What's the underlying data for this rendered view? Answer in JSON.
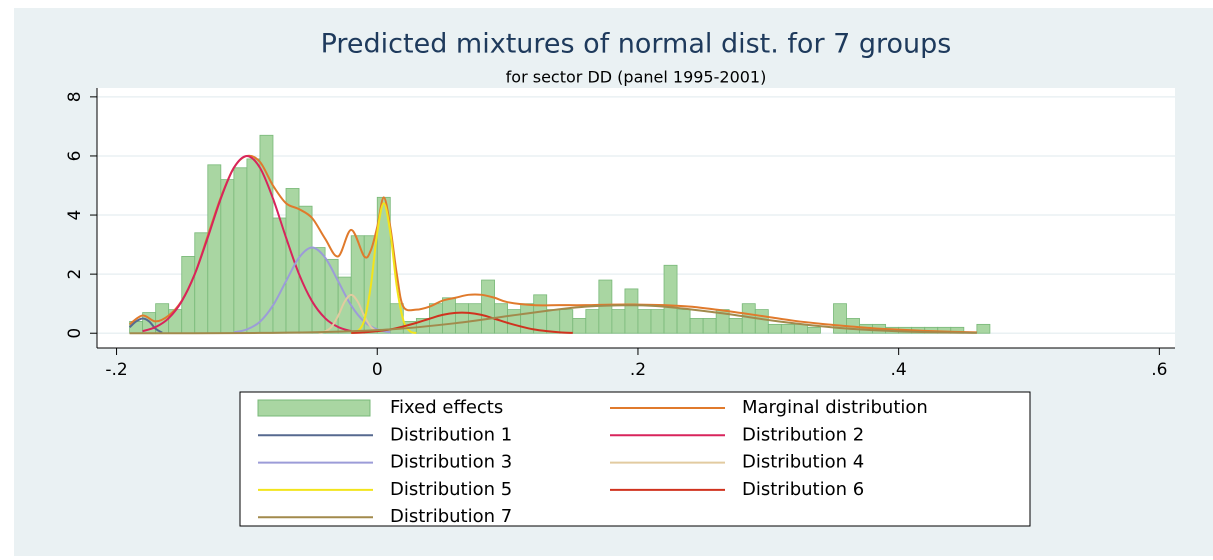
{
  "chart_data": {
    "type": "histogram",
    "title": "Predicted mixtures of normal dist. for 7 groups",
    "subtitle": "for sector DD (panel 1995-2001)",
    "xlim": [
      -0.215,
      0.612
    ],
    "xticks": [
      {
        "value": -0.2,
        "label": "-.2"
      },
      0,
      {
        "value": 0.2,
        "label": ".2"
      },
      {
        "value": 0.4,
        "label": ".4"
      },
      {
        "value": 0.6,
        "label": ".6"
      }
    ],
    "ylim": [
      -0.5,
      8.3
    ],
    "yticks": [
      0,
      2,
      4,
      6,
      8
    ],
    "grid": true,
    "series": [
      {
        "name": "Fixed effects",
        "type": "histogram",
        "color": "#a9d6a2",
        "bins": [
          -0.19,
          -0.18,
          -0.17,
          -0.16,
          -0.15,
          -0.14,
          -0.13,
          -0.12,
          -0.11,
          -0.1,
          -0.09,
          -0.08,
          -0.07,
          -0.06,
          -0.05,
          -0.04,
          -0.03,
          -0.02,
          -0.01,
          0,
          0.01,
          0.02,
          0.03,
          0.04,
          0.05,
          0.06,
          0.07,
          0.08,
          0.09,
          0.1,
          0.11,
          0.12,
          0.13,
          0.14,
          0.15,
          0.16,
          0.17,
          0.18,
          0.19,
          0.2,
          0.21,
          0.22,
          0.23,
          0.24,
          0.25,
          0.26,
          0.27,
          0.28,
          0.29,
          0.3,
          0.31,
          0.32,
          0.33,
          0.34,
          0.35,
          0.36,
          0.37,
          0.38,
          0.39,
          0.4,
          0.41,
          0.42,
          0.43,
          0.44,
          0.45,
          0.46,
          0.47
        ],
        "values": [
          0.4,
          0.7,
          1.0,
          0.8,
          2.6,
          3.4,
          5.7,
          5.2,
          5.6,
          5.9,
          6.7,
          3.9,
          4.9,
          4.3,
          2.9,
          2.5,
          1.9,
          3.3,
          3.3,
          4.6,
          1.0,
          0.4,
          0.5,
          1.0,
          1.2,
          1.0,
          1.0,
          1.8,
          1.0,
          0.8,
          1.0,
          1.3,
          0.8,
          0.8,
          0.5,
          0.8,
          1.8,
          0.8,
          1.5,
          0.8,
          0.8,
          2.3,
          0.8,
          0.5,
          0.5,
          0.8,
          0.5,
          1.0,
          0.8,
          0.3,
          0.3,
          0.3,
          0.2,
          0,
          1.0,
          0.5,
          0.3,
          0.3,
          0.2,
          0.2,
          0.2,
          0.2,
          0.2,
          0.2,
          0,
          0.3
        ]
      },
      {
        "name": "Marginal distribution",
        "type": "line",
        "color": "#e07a2c",
        "x": [
          -0.19,
          -0.18,
          -0.17,
          -0.16,
          -0.15,
          -0.14,
          -0.13,
          -0.12,
          -0.11,
          -0.1,
          -0.09,
          -0.08,
          -0.07,
          -0.06,
          -0.05,
          -0.04,
          -0.03,
          -0.02,
          -0.01,
          -0.005,
          0,
          0.005,
          0.01,
          0.015,
          0.02,
          0.03,
          0.04,
          0.05,
          0.06,
          0.07,
          0.08,
          0.09,
          0.1,
          0.12,
          0.14,
          0.16,
          0.18,
          0.2,
          0.22,
          0.24,
          0.26,
          0.28,
          0.3,
          0.32,
          0.34,
          0.36,
          0.38,
          0.4,
          0.42,
          0.44,
          0.46
        ],
        "values": [
          0.3,
          0.6,
          0.4,
          0.6,
          1.1,
          2.0,
          3.3,
          4.6,
          5.6,
          6.0,
          5.8,
          5.0,
          4.4,
          4.2,
          3.9,
          3.2,
          2.6,
          3.5,
          2.6,
          2.8,
          3.6,
          4.6,
          3.6,
          2.0,
          0.9,
          0.8,
          0.9,
          1.1,
          1.2,
          1.3,
          1.3,
          1.2,
          1.05,
          0.95,
          0.95,
          0.95,
          0.97,
          0.97,
          0.95,
          0.9,
          0.8,
          0.68,
          0.55,
          0.42,
          0.32,
          0.24,
          0.17,
          0.12,
          0.08,
          0.05,
          0.03
        ]
      },
      {
        "name": "Distribution 1",
        "type": "line",
        "color": "#56698f",
        "x": [
          -0.19,
          -0.185,
          -0.18,
          -0.175,
          -0.17,
          -0.165
        ],
        "values": [
          0.2,
          0.4,
          0.5,
          0.4,
          0.15,
          0.02
        ]
      },
      {
        "name": "Distribution 2",
        "type": "line",
        "color": "#d8245c",
        "x": [
          -0.18,
          -0.17,
          -0.16,
          -0.15,
          -0.14,
          -0.13,
          -0.12,
          -0.11,
          -0.1,
          -0.09,
          -0.08,
          -0.07,
          -0.06,
          -0.05,
          -0.04,
          -0.03,
          -0.02
        ],
        "values": [
          0.07,
          0.21,
          0.51,
          1.08,
          2.0,
          3.24,
          4.56,
          5.6,
          6.0,
          5.6,
          4.56,
          3.24,
          2.0,
          1.08,
          0.51,
          0.21,
          0.07
        ]
      },
      {
        "name": "Distribution 3",
        "type": "line",
        "color": "#9c9cd8",
        "x": [
          -0.11,
          -0.1,
          -0.09,
          -0.08,
          -0.07,
          -0.06,
          -0.05,
          -0.04,
          -0.03,
          -0.02,
          -0.01,
          0,
          0.01
        ],
        "values": [
          0.03,
          0.13,
          0.39,
          0.94,
          1.76,
          2.56,
          2.9,
          2.56,
          1.76,
          0.94,
          0.39,
          0.13,
          0.03
        ]
      },
      {
        "name": "Distribution 4",
        "type": "line",
        "color": "#e2cba0",
        "x": [
          -0.045,
          -0.04,
          -0.035,
          -0.03,
          -0.025,
          -0.02,
          -0.015,
          -0.01,
          -0.005,
          0
        ],
        "values": [
          0.01,
          0.06,
          0.22,
          0.59,
          1.07,
          1.3,
          1.07,
          0.59,
          0.22,
          0.06
        ]
      },
      {
        "name": "Distribution 5",
        "type": "line",
        "color": "#f2e41c",
        "x": [
          -0.02,
          -0.015,
          -0.01,
          -0.005,
          0,
          0.005,
          0.01,
          0.015,
          0.02,
          0.025,
          0.03
        ],
        "values": [
          0.01,
          0.07,
          0.44,
          1.58,
          3.41,
          4.4,
          3.41,
          1.58,
          0.44,
          0.07,
          0.01
        ]
      },
      {
        "name": "Distribution 6",
        "type": "line",
        "color": "#d0321e",
        "x": [
          -0.02,
          -0.01,
          0,
          0.01,
          0.02,
          0.03,
          0.04,
          0.05,
          0.06,
          0.07,
          0.08,
          0.09,
          0.1,
          0.11,
          0.12,
          0.13,
          0.14,
          0.15
        ],
        "values": [
          0.01,
          0.03,
          0.07,
          0.13,
          0.23,
          0.35,
          0.49,
          0.62,
          0.69,
          0.69,
          0.62,
          0.49,
          0.35,
          0.23,
          0.13,
          0.07,
          0.03,
          0.01
        ]
      },
      {
        "name": "Distribution 7",
        "type": "line",
        "color": "#a28a4c",
        "x": [
          -0.19,
          -0.14,
          -0.09,
          -0.04,
          0.01,
          0.06,
          0.11,
          0.16,
          0.21,
          0.26,
          0.31,
          0.36,
          0.41,
          0.46
        ],
        "values": [
          0,
          0,
          0.01,
          0.04,
          0.13,
          0.34,
          0.64,
          0.9,
          0.93,
          0.7,
          0.39,
          0.16,
          0.05,
          0.01
        ]
      }
    ]
  }
}
